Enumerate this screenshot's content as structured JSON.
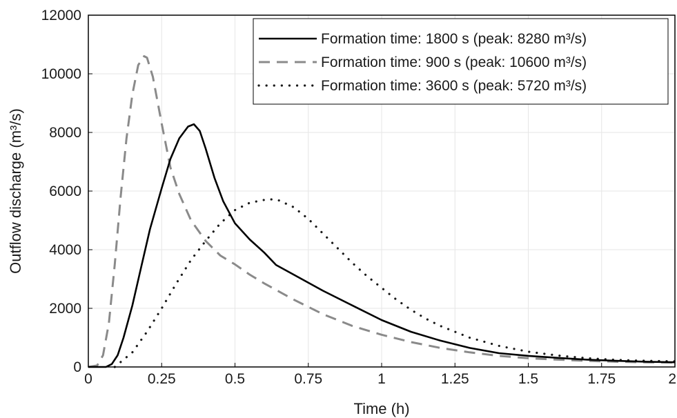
{
  "chart_data": {
    "type": "line",
    "xlabel": "Time (h)",
    "ylabel": "Outflow discharge (m³/s)",
    "xlim": [
      0,
      2
    ],
    "ylim": [
      0,
      12000
    ],
    "x_ticks": [
      0,
      0.25,
      0.5,
      0.75,
      1,
      1.25,
      1.5,
      1.75,
      2
    ],
    "x_tick_labels": [
      "0",
      "0.25",
      "0.5",
      "0.75",
      "1",
      "1.25",
      "1.5",
      "1.75",
      "2"
    ],
    "y_ticks": [
      0,
      2000,
      4000,
      6000,
      8000,
      10000,
      12000
    ],
    "y_tick_labels": [
      "0",
      "2000",
      "4000",
      "6000",
      "8000",
      "10000",
      "12000"
    ],
    "grid": true,
    "legend_position": "top-right",
    "series": [
      {
        "name": "Formation time: 1800 s (peak: 8280 m³/s)",
        "style": "solid",
        "color": "#000000",
        "x": [
          0,
          0.06,
          0.08,
          0.1,
          0.12,
          0.15,
          0.18,
          0.21,
          0.25,
          0.28,
          0.31,
          0.34,
          0.36,
          0.38,
          0.4,
          0.43,
          0.46,
          0.5,
          0.55,
          0.6,
          0.64,
          0.7,
          0.8,
          0.9,
          1.0,
          1.1,
          1.2,
          1.3,
          1.4,
          1.5,
          1.6,
          1.7,
          1.8,
          1.9,
          2.0
        ],
        "y": [
          0,
          0,
          100,
          400,
          1000,
          2100,
          3400,
          4700,
          6100,
          7100,
          7800,
          8200,
          8280,
          8050,
          7450,
          6450,
          5650,
          4900,
          4350,
          3900,
          3480,
          3150,
          2600,
          2100,
          1600,
          1200,
          900,
          650,
          470,
          380,
          310,
          250,
          210,
          180,
          160
        ]
      },
      {
        "name": "Formation time: 900 s (peak: 10600 m³/s)",
        "style": "dashed",
        "color": "#8a8a8a",
        "x": [
          0,
          0.03,
          0.05,
          0.07,
          0.09,
          0.11,
          0.13,
          0.15,
          0.17,
          0.19,
          0.2,
          0.22,
          0.25,
          0.28,
          0.31,
          0.35,
          0.4,
          0.45,
          0.5,
          0.55,
          0.6,
          0.7,
          0.8,
          0.9,
          1.0,
          1.1,
          1.2,
          1.3,
          1.4,
          1.5,
          1.6,
          1.7,
          1.8,
          1.9,
          2.0
        ],
        "y": [
          0,
          50,
          400,
          1500,
          3500,
          5800,
          7800,
          9300,
          10300,
          10600,
          10550,
          9900,
          8300,
          6800,
          5900,
          5000,
          4300,
          3800,
          3500,
          3150,
          2850,
          2300,
          1800,
          1400,
          1100,
          850,
          650,
          500,
          380,
          300,
          250,
          210,
          180,
          160,
          150
        ]
      },
      {
        "name": "Formation time: 3600 s (peak: 5720 m³/s)",
        "style": "dotted",
        "color": "#1a1a1a",
        "x": [
          0.09,
          0.15,
          0.2,
          0.25,
          0.3,
          0.35,
          0.4,
          0.45,
          0.5,
          0.55,
          0.6,
          0.63,
          0.65,
          0.7,
          0.75,
          0.8,
          0.85,
          0.9,
          0.95,
          1.0,
          1.05,
          1.1,
          1.15,
          1.2,
          1.25,
          1.3,
          1.4,
          1.5,
          1.6,
          1.7,
          1.8,
          1.9,
          2.0
        ],
        "y": [
          0,
          500,
          1200,
          2000,
          2850,
          3650,
          4300,
          4900,
          5350,
          5600,
          5700,
          5720,
          5680,
          5450,
          5050,
          4550,
          4050,
          3550,
          3100,
          2700,
          2300,
          1950,
          1650,
          1400,
          1200,
          1000,
          720,
          520,
          390,
          300,
          240,
          210,
          190
        ]
      }
    ]
  }
}
